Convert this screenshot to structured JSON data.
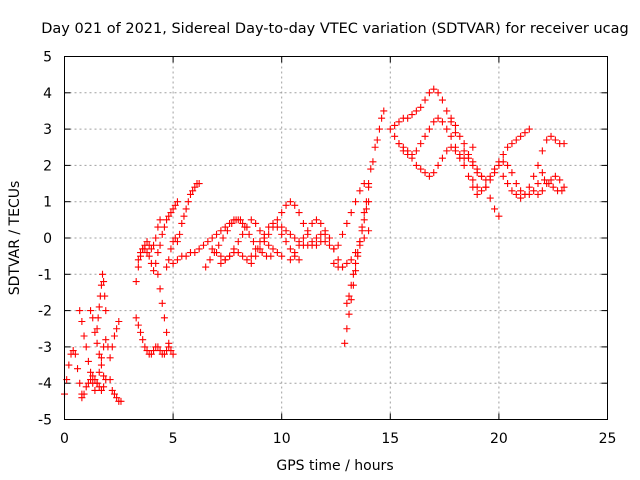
{
  "chart_data": {
    "type": "scatter",
    "title": "Day 021 of 2021, Sidereal Day-to-day VTEC variation (SDTVAR) for receiver ucag",
    "xlabel": "GPS time / hours",
    "ylabel": "SDTVAR / TECUs",
    "xlim": [
      0,
      25
    ],
    "ylim": [
      -5,
      5
    ],
    "xticks": [
      "0",
      "5",
      "10",
      "15",
      "20",
      "25"
    ],
    "yticks": [
      "-5",
      "-4",
      "-3",
      "-2",
      "-1",
      "0",
      "1",
      "2",
      "3",
      "4",
      "5"
    ],
    "grid": true,
    "marker": "+",
    "color": "#ff0000",
    "series": [
      {
        "x": [
          0.0,
          0.1,
          0.2,
          0.3,
          0.4,
          0.5,
          0.6,
          0.7,
          0.8
        ],
        "y": [
          -4.3,
          -3.9,
          -3.5,
          -3.2,
          -3.1,
          -3.2,
          -3.6,
          -4.0,
          -4.3
        ]
      },
      {
        "x": [
          0.7,
          0.8,
          0.9,
          1.0,
          1.1,
          1.2,
          1.3,
          1.4,
          1.5,
          1.6,
          1.7,
          1.8,
          1.9,
          2.0
        ],
        "y": [
          -2.0,
          -2.3,
          -2.7,
          -3.0,
          -3.4,
          -3.7,
          -4.0,
          -4.2,
          -4.0,
          -3.7,
          -3.3,
          -3.0,
          -2.8,
          -3.0
        ]
      },
      {
        "x": [
          0.8,
          0.9,
          1.0,
          1.1,
          1.2,
          1.3,
          1.4,
          1.5,
          1.6,
          1.7,
          1.8,
          1.9
        ],
        "y": [
          -4.4,
          -4.3,
          -4.1,
          -4.0,
          -3.9,
          -3.8,
          -3.9,
          -4.0,
          -4.1,
          -4.2,
          -4.1,
          -3.9
        ]
      },
      {
        "x": [
          1.2,
          1.3,
          1.4,
          1.5,
          1.6,
          1.7,
          1.8
        ],
        "y": [
          -2.0,
          -2.2,
          -2.6,
          -2.9,
          -3.2,
          -3.5,
          -3.8
        ]
      },
      {
        "x": [
          1.5,
          1.55,
          1.6,
          1.65,
          1.7,
          1.75,
          1.8,
          1.85,
          1.9
        ],
        "y": [
          -2.5,
          -2.2,
          -1.9,
          -1.6,
          -1.3,
          -1.0,
          -1.2,
          -1.6,
          -2.0
        ]
      },
      {
        "x": [
          2.1,
          2.2,
          2.3,
          2.4,
          2.5,
          2.6
        ],
        "y": [
          -3.9,
          -4.2,
          -4.3,
          -4.4,
          -4.5,
          -4.5
        ]
      },
      {
        "x": [
          2.1,
          2.2,
          2.3,
          2.4,
          2.5
        ],
        "y": [
          -3.3,
          -3.0,
          -2.7,
          -2.5,
          -2.3
        ]
      },
      {
        "x": [
          3.3,
          3.4,
          3.5,
          3.6,
          3.7,
          3.8,
          3.9,
          4.0,
          4.1,
          4.2,
          4.3,
          4.4,
          4.5,
          4.6,
          4.7,
          4.8
        ],
        "y": [
          -2.2,
          -2.4,
          -2.6,
          -2.8,
          -3.0,
          -3.1,
          -3.2,
          -3.2,
          -3.1,
          -3.0,
          -3.0,
          -3.1,
          -3.2,
          -3.2,
          -3.1,
          -3.0
        ]
      },
      {
        "x": [
          3.3,
          3.4,
          3.5,
          3.6,
          3.7,
          3.8,
          3.9,
          4.0,
          4.1,
          4.2,
          4.3,
          4.4
        ],
        "y": [
          -1.2,
          -0.8,
          -0.5,
          -0.3,
          -0.2,
          -0.1,
          -0.2,
          -0.3,
          -0.2,
          0.0,
          0.3,
          0.5
        ]
      },
      {
        "x": [
          3.4,
          3.5,
          3.6,
          3.7,
          3.8,
          3.9,
          4.0,
          4.1,
          4.2,
          4.3,
          4.4,
          4.5,
          4.6,
          4.7,
          4.8,
          4.9,
          5.0,
          5.1,
          5.2
        ],
        "y": [
          -0.6,
          -0.4,
          -0.3,
          -0.3,
          -0.4,
          -0.5,
          -0.7,
          -0.9,
          -0.7,
          -0.4,
          -0.2,
          0.1,
          0.3,
          0.5,
          0.6,
          0.7,
          0.8,
          0.9,
          1.0
        ]
      },
      {
        "x": [
          4.3,
          4.4,
          4.5,
          4.6,
          4.7,
          4.8,
          4.9,
          5.0
        ],
        "y": [
          -1.0,
          -1.4,
          -1.8,
          -2.2,
          -2.6,
          -2.9,
          -3.1,
          -3.2
        ]
      },
      {
        "x": [
          4.7,
          4.8,
          4.9,
          5.0,
          5.1,
          5.2,
          5.3,
          5.4,
          5.5,
          5.6,
          5.7,
          5.8,
          5.9,
          6.0,
          6.1,
          6.2
        ],
        "y": [
          -0.8,
          -0.6,
          -0.3,
          -0.1,
          0.0,
          -0.1,
          0.1,
          0.4,
          0.6,
          0.8,
          1.0,
          1.2,
          1.3,
          1.4,
          1.5,
          1.5
        ]
      },
      {
        "x": [
          5.0,
          5.2,
          5.4,
          5.6,
          5.8,
          6.0,
          6.2,
          6.4,
          6.6,
          6.8,
          7.0,
          7.2,
          7.4,
          7.6,
          7.8,
          8.0,
          8.2,
          8.4
        ],
        "y": [
          -0.7,
          -0.6,
          -0.5,
          -0.5,
          -0.4,
          -0.4,
          -0.3,
          -0.2,
          -0.1,
          0.0,
          0.1,
          0.2,
          0.3,
          0.4,
          0.5,
          0.5,
          0.4,
          0.3
        ]
      },
      {
        "x": [
          6.5,
          6.7,
          6.9,
          7.1,
          7.3,
          7.5,
          7.7,
          7.9,
          8.1,
          8.3,
          8.5,
          8.7,
          8.9,
          9.1,
          9.3,
          9.5
        ],
        "y": [
          -0.8,
          -0.6,
          -0.4,
          -0.2,
          0.0,
          0.2,
          0.4,
          0.5,
          0.5,
          0.3,
          0.1,
          -0.1,
          -0.3,
          -0.4,
          -0.5,
          -0.5
        ]
      },
      {
        "x": [
          6.8,
          7.0,
          7.2,
          7.4,
          7.6,
          7.8,
          8.0,
          8.2,
          8.4,
          8.6,
          8.8,
          9.0,
          9.2,
          9.4,
          9.6,
          9.8,
          10.0
        ],
        "y": [
          -0.3,
          -0.4,
          -0.5,
          -0.6,
          -0.5,
          -0.3,
          -0.1,
          0.1,
          0.3,
          0.5,
          0.4,
          0.2,
          0.0,
          -0.2,
          -0.3,
          -0.4,
          -0.5
        ]
      },
      {
        "x": [
          7.2,
          7.4,
          7.6,
          7.8,
          8.0,
          8.2,
          8.4,
          8.6,
          8.8,
          9.0,
          9.2,
          9.4,
          9.6,
          9.8,
          10.0,
          10.2,
          10.4,
          10.6,
          10.8
        ],
        "y": [
          -0.7,
          -0.6,
          -0.5,
          -0.4,
          -0.4,
          -0.5,
          -0.6,
          -0.5,
          -0.3,
          -0.1,
          0.1,
          0.3,
          0.4,
          0.3,
          0.1,
          -0.1,
          -0.3,
          -0.5,
          -0.6
        ]
      },
      {
        "x": [
          8.6,
          8.8,
          9.0,
          9.2,
          9.4,
          9.6,
          9.8,
          10.0,
          10.2,
          10.4,
          10.6,
          10.8,
          11.0,
          11.2,
          11.4
        ],
        "y": [
          -0.7,
          -0.5,
          -0.3,
          -0.1,
          0.1,
          0.3,
          0.5,
          0.7,
          0.9,
          1.0,
          0.9,
          0.7,
          0.4,
          0.1,
          -0.2
        ]
      },
      {
        "x": [
          10.0,
          10.2,
          10.4,
          10.6,
          10.8,
          11.0,
          11.2,
          11.4,
          11.6,
          11.8,
          12.0,
          12.2
        ],
        "y": [
          0.3,
          0.2,
          0.1,
          0.0,
          -0.1,
          -0.2,
          -0.2,
          -0.1,
          0.0,
          0.1,
          0.1,
          0.0
        ]
      },
      {
        "x": [
          10.4,
          10.6,
          10.8,
          11.0,
          11.2,
          11.4,
          11.6,
          11.8,
          12.0,
          12.2,
          12.4,
          12.6,
          12.8
        ],
        "y": [
          -0.6,
          -0.4,
          -0.2,
          0.0,
          0.2,
          0.4,
          0.5,
          0.4,
          0.2,
          0.0,
          -0.3,
          -0.6,
          -0.8
        ]
      },
      {
        "x": [
          11.6,
          11.8,
          12.0,
          12.2,
          12.4,
          12.6,
          12.8,
          13.0,
          13.2,
          13.4,
          13.6,
          13.8,
          14.0
        ],
        "y": [
          -0.2,
          -0.1,
          -0.1,
          -0.2,
          -0.3,
          -0.2,
          0.1,
          0.4,
          0.7,
          1.0,
          1.3,
          1.5,
          1.4
        ]
      },
      {
        "x": [
          12.4,
          12.6,
          12.8,
          13.0,
          13.2,
          13.4,
          13.6,
          13.8,
          14.0
        ],
        "y": [
          -0.7,
          -0.8,
          -0.8,
          -0.7,
          -0.6,
          -0.4,
          -0.2,
          0.0,
          0.2
        ]
      },
      {
        "x": [
          12.9,
          13.0,
          13.1,
          13.2,
          13.3,
          13.4,
          13.5,
          13.6,
          13.7,
          13.8,
          13.9
        ],
        "y": [
          -2.9,
          -2.5,
          -2.1,
          -1.7,
          -1.3,
          -0.9,
          -0.5,
          -0.1,
          0.3,
          0.7,
          1.0
        ]
      },
      {
        "x": [
          13.0,
          13.1,
          13.2,
          13.3,
          13.4,
          13.5,
          13.6,
          13.7,
          13.8,
          13.9,
          14.0
        ],
        "y": [
          -1.8,
          -1.6,
          -1.3,
          -1.0,
          -0.7,
          -0.4,
          -0.1,
          0.2,
          0.5,
          0.8,
          1.0
        ]
      },
      {
        "x": [
          14.0,
          14.1,
          14.2,
          14.3,
          14.4,
          14.5,
          14.6,
          14.7
        ],
        "y": [
          1.5,
          1.9,
          2.1,
          2.5,
          2.7,
          3.0,
          3.3,
          3.5
        ]
      },
      {
        "x": [
          15.0,
          15.2,
          15.4,
          15.6,
          15.8,
          16.0,
          16.2,
          16.4,
          16.6,
          16.8,
          17.0,
          17.2,
          17.4,
          17.6,
          17.8,
          18.0
        ],
        "y": [
          3.0,
          3.1,
          3.2,
          3.3,
          3.3,
          3.4,
          3.5,
          3.6,
          3.8,
          4.0,
          4.1,
          4.0,
          3.8,
          3.5,
          3.2,
          2.9
        ]
      },
      {
        "x": [
          15.2,
          15.4,
          15.6,
          15.8,
          16.0,
          16.2,
          16.4,
          16.6,
          16.8,
          17.0,
          17.2,
          17.4,
          17.6,
          17.8,
          18.0,
          18.2,
          18.4,
          18.6,
          18.8
        ],
        "y": [
          2.8,
          2.6,
          2.4,
          2.3,
          2.3,
          2.4,
          2.6,
          2.8,
          3.0,
          3.2,
          3.3,
          3.2,
          3.0,
          2.8,
          2.5,
          2.3,
          2.2,
          2.3,
          2.5
        ]
      },
      {
        "x": [
          15.4,
          15.6,
          15.8,
          16.0,
          16.2,
          16.4,
          16.6,
          16.8,
          17.0,
          17.2,
          17.4,
          17.6,
          17.8,
          18.0,
          18.2,
          18.4,
          18.6,
          18.8,
          19.0
        ],
        "y": [
          2.6,
          2.5,
          2.4,
          2.2,
          2.0,
          1.9,
          1.8,
          1.7,
          1.8,
          2.0,
          2.2,
          2.4,
          2.5,
          2.4,
          2.2,
          2.0,
          1.7,
          1.4,
          1.2
        ]
      },
      {
        "x": [
          17.8,
          18.0,
          18.2,
          18.4,
          18.6,
          18.8,
          19.0,
          19.2,
          19.4,
          19.6,
          19.8,
          20.0
        ],
        "y": [
          3.3,
          3.1,
          2.8,
          2.6,
          2.3,
          2.1,
          1.9,
          1.7,
          1.4,
          1.1,
          0.8,
          0.6
        ]
      },
      {
        "x": [
          18.4,
          18.6,
          18.8,
          19.0,
          19.2,
          19.4,
          19.6,
          19.8,
          20.0,
          20.2,
          20.4,
          20.6,
          20.8,
          21.0,
          21.2,
          21.4
        ],
        "y": [
          2.4,
          2.2,
          2.0,
          1.8,
          1.7,
          1.6,
          1.7,
          1.9,
          2.1,
          2.3,
          2.5,
          2.6,
          2.7,
          2.8,
          2.9,
          3.0
        ]
      },
      {
        "x": [
          18.8,
          19.0,
          19.2,
          19.4,
          19.6,
          19.8,
          20.0,
          20.2,
          20.4,
          20.6,
          20.8,
          21.0,
          21.2,
          21.4,
          21.6,
          21.8,
          22.0
        ],
        "y": [
          1.6,
          1.4,
          1.3,
          1.4,
          1.6,
          1.8,
          2.0,
          2.1,
          2.0,
          1.8,
          1.5,
          1.3,
          1.2,
          1.2,
          1.3,
          1.5,
          1.8
        ]
      },
      {
        "x": [
          20.2,
          20.4,
          20.6,
          20.8,
          21.0,
          21.2,
          21.4,
          21.6,
          21.8,
          22.0,
          22.2,
          22.4,
          22.6,
          22.8,
          23.0
        ],
        "y": [
          1.7,
          1.5,
          1.3,
          1.2,
          1.1,
          1.2,
          1.4,
          1.7,
          2.0,
          2.4,
          2.7,
          2.8,
          2.7,
          2.6,
          2.6
        ]
      },
      {
        "x": [
          21.8,
          22.0,
          22.2,
          22.4,
          22.6,
          22.8,
          23.0,
          22.9,
          22.7,
          22.5,
          22.3,
          22.1
        ],
        "y": [
          1.2,
          1.3,
          1.5,
          1.6,
          1.7,
          1.6,
          1.4,
          1.3,
          1.3,
          1.4,
          1.5,
          1.6
        ]
      }
    ]
  }
}
